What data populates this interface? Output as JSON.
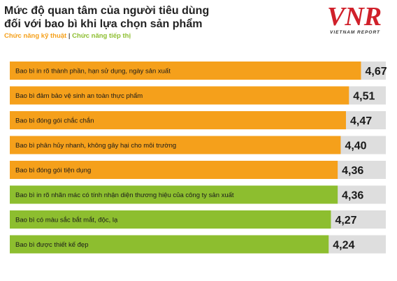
{
  "header": {
    "title_line1": "Mức độ quan tâm của người tiêu dùng",
    "title_line2": "đối với bao bì khi lựa chọn sản phẩm",
    "legend_technical": "Chức năng kỹ thuật",
    "legend_separator": " | ",
    "legend_marketing": "Chức năng tiếp thị"
  },
  "logo": {
    "mark": "VNR",
    "text": "VIETNAM REPORT"
  },
  "colors": {
    "technical": "#F5A01B",
    "marketing": "#8DBE2F",
    "track": "#DEDEDE",
    "logo_red": "#D0202A",
    "value_text": "#1A1A1A"
  },
  "chart_data": {
    "type": "bar",
    "orientation": "horizontal",
    "xlim": [
      0,
      5
    ],
    "bars": [
      {
        "label": "Bao bì in rõ thành phần, hạn sử dụng, ngày sản xuất",
        "value": 4.67,
        "display": "4,67",
        "group": "technical"
      },
      {
        "label": "Bao bì đảm bảo vệ sinh an toàn thực phẩm",
        "value": 4.51,
        "display": "4,51",
        "group": "technical"
      },
      {
        "label": "Bao bì đóng gói chắc chắn",
        "value": 4.47,
        "display": "4,47",
        "group": "technical"
      },
      {
        "label": "Bao bì phân hủy nhanh, không gây hại cho môi trường",
        "value": 4.4,
        "display": "4,40",
        "group": "technical"
      },
      {
        "label": "Bao bì đóng gói tiện dụng",
        "value": 4.36,
        "display": "4,36",
        "group": "technical"
      },
      {
        "label": "Bao bì in rõ nhãn mác có tính nhận diện thương hiệu của công ty sản xuất",
        "value": 4.36,
        "display": "4,36",
        "group": "marketing"
      },
      {
        "label": "Bao bì có màu sắc bắt mắt, độc, lạ",
        "value": 4.27,
        "display": "4,27",
        "group": "marketing"
      },
      {
        "label": "Bao bì được thiết kế đẹp",
        "value": 4.24,
        "display": "4,24",
        "group": "marketing"
      }
    ]
  }
}
